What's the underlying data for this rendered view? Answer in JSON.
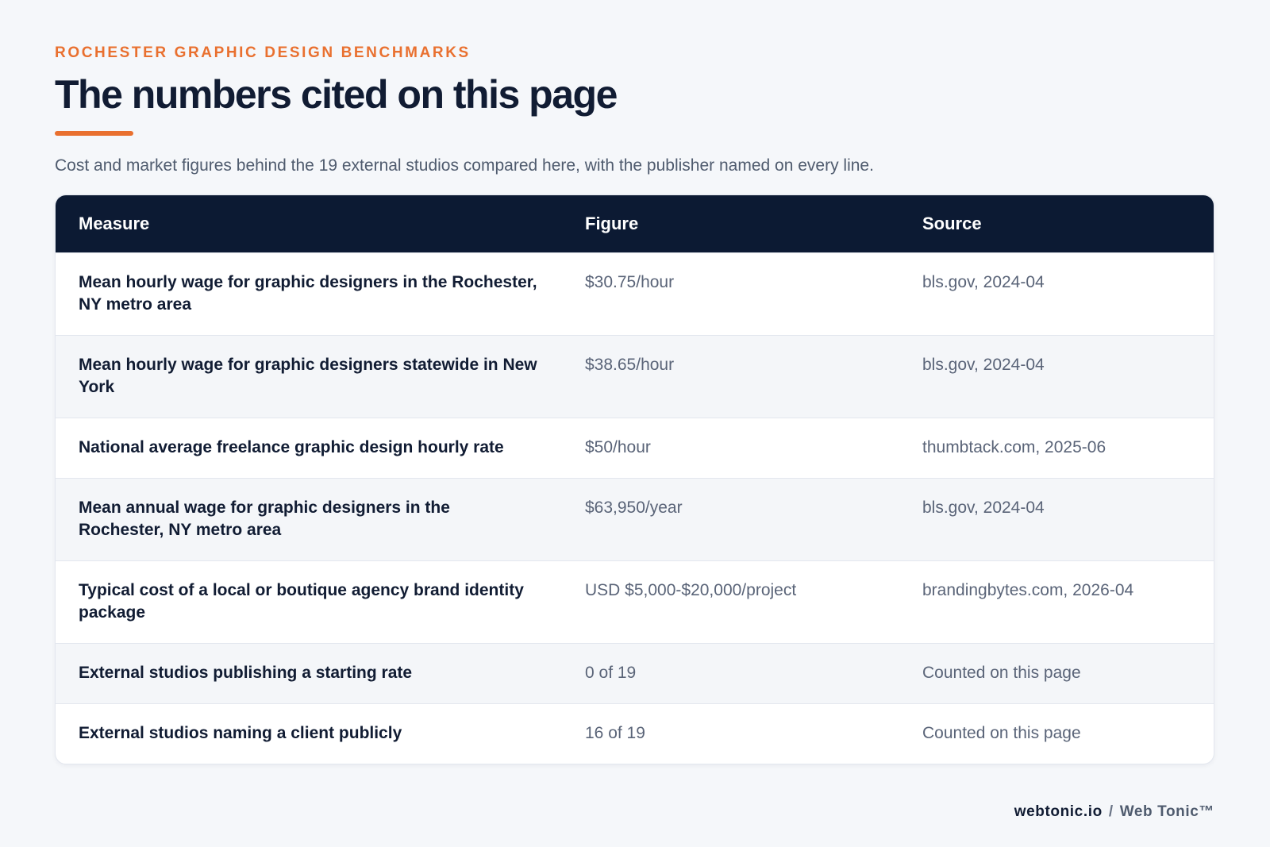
{
  "header": {
    "eyebrow": "ROCHESTER GRAPHIC DESIGN BENCHMARKS",
    "title": "The numbers cited on this page",
    "subtitle": "Cost and market figures behind the 19 external studios compared here, with the publisher named on every line."
  },
  "table": {
    "columns": [
      "Measure",
      "Figure",
      "Source"
    ],
    "rows": [
      [
        "Mean hourly wage for graphic designers in the Rochester, NY metro area",
        "$30.75/hour",
        "bls.gov, 2024-04"
      ],
      [
        "Mean hourly wage for graphic designers statewide in New York",
        "$38.65/hour",
        "bls.gov, 2024-04"
      ],
      [
        "National average freelance graphic design hourly rate",
        "$50/hour",
        "thumbtack.com, 2025-06"
      ],
      [
        "Mean annual wage for graphic designers in the Rochester, NY metro area",
        "$63,950/year",
        "bls.gov, 2024-04"
      ],
      [
        "Typical cost of a local or boutique agency brand identity package",
        "USD $5,000-$20,000/project",
        "brandingbytes.com, 2026-04"
      ],
      [
        "External studios publishing a starting rate",
        "0 of 19",
        "Counted on this page"
      ],
      [
        "External studios naming a client publicly",
        "16 of 19",
        "Counted on this page"
      ]
    ]
  },
  "footer": {
    "site": "webtonic.io",
    "separator": "/",
    "brand": "Web Tonic™"
  }
}
